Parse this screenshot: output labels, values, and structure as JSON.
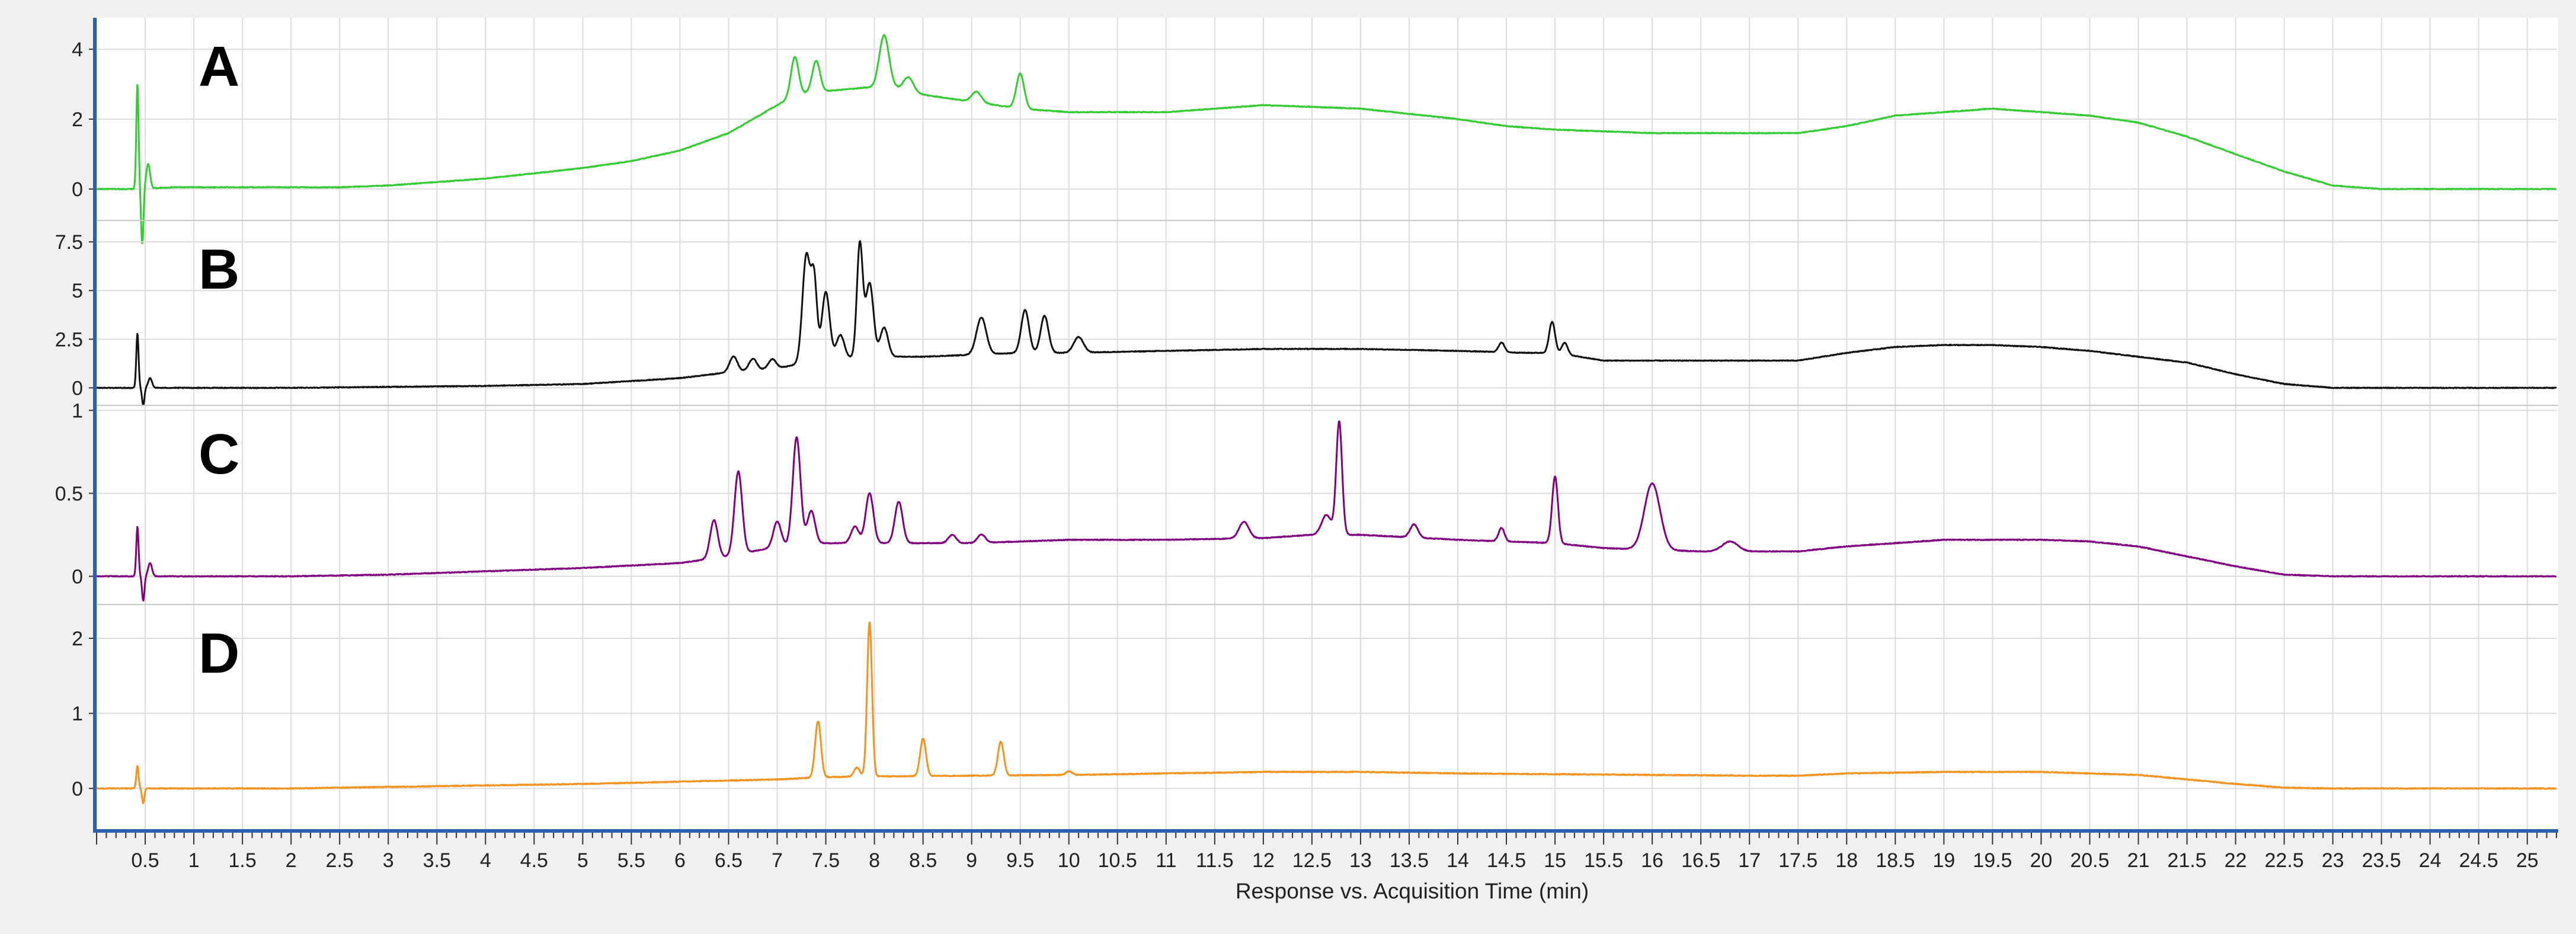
{
  "chart_data": {
    "type": "line",
    "xlabel": "Response vs. Acquisition Time (min)",
    "xlim": [
      0,
      25.3
    ],
    "xticks": [
      0.5,
      1,
      1.5,
      2,
      2.5,
      3,
      3.5,
      4,
      4.5,
      5,
      5.5,
      6,
      6.5,
      7,
      7.5,
      8,
      8.5,
      9,
      9.5,
      10,
      10.5,
      11,
      11.5,
      12,
      12.5,
      13,
      13.5,
      14,
      14.5,
      15,
      15.5,
      16,
      16.5,
      17,
      17.5,
      18,
      18.5,
      19,
      19.5,
      20,
      20.5,
      21,
      21.5,
      22,
      22.5,
      23,
      23.5,
      24,
      24.5,
      25
    ],
    "grid": true,
    "panels": [
      {
        "label": "A",
        "color": "#33cc33",
        "ylim": [
          -0.9,
          4.9
        ],
        "yticks": [
          0,
          2,
          4
        ],
        "ytick_labels": [
          "0",
          "2",
          "4"
        ],
        "baseline": [
          [
            0,
            0
          ],
          [
            0.4,
            0
          ],
          [
            0.8,
            0.05
          ],
          [
            2,
            0.05
          ],
          [
            2.5,
            0.05
          ],
          [
            3,
            0.1
          ],
          [
            4,
            0.3
          ],
          [
            5,
            0.6
          ],
          [
            5.5,
            0.8
          ],
          [
            6,
            1.1
          ],
          [
            6.5,
            1.6
          ],
          [
            7,
            2.4
          ],
          [
            7.2,
            2.7
          ],
          [
            7.5,
            2.8
          ],
          [
            7.9,
            2.9
          ],
          [
            8.2,
            2.9
          ],
          [
            8.5,
            2.7
          ],
          [
            9,
            2.5
          ],
          [
            9.5,
            2.3
          ],
          [
            10,
            2.2
          ],
          [
            11,
            2.2
          ],
          [
            11.5,
            2.3
          ],
          [
            12,
            2.4
          ],
          [
            13,
            2.3
          ],
          [
            14,
            2.0
          ],
          [
            14.5,
            1.8
          ],
          [
            15,
            1.7
          ],
          [
            16,
            1.6
          ],
          [
            17.5,
            1.6
          ],
          [
            18,
            1.8
          ],
          [
            18.5,
            2.1
          ],
          [
            19,
            2.2
          ],
          [
            19.5,
            2.3
          ],
          [
            20,
            2.2
          ],
          [
            20.5,
            2.1
          ],
          [
            21,
            1.9
          ],
          [
            21.5,
            1.5
          ],
          [
            22,
            1.0
          ],
          [
            22.5,
            0.5
          ],
          [
            23,
            0.1
          ],
          [
            23.5,
            0
          ],
          [
            25.3,
            0
          ]
        ],
        "peaks": [
          [
            0.42,
            3.0,
            0.012
          ],
          [
            0.47,
            -1.6,
            0.012
          ],
          [
            0.53,
            0.7,
            0.02
          ],
          [
            7.18,
            1.1,
            0.04
          ],
          [
            7.4,
            0.9,
            0.04
          ],
          [
            8.1,
            1.5,
            0.05
          ],
          [
            8.35,
            0.4,
            0.05
          ],
          [
            9.05,
            0.3,
            0.05
          ],
          [
            9.5,
            1.0,
            0.04
          ]
        ]
      },
      {
        "label": "B",
        "color": "#111111",
        "ylim": [
          -0.9,
          8.6
        ],
        "yticks": [
          0,
          2.5,
          5,
          7.5
        ],
        "ytick_labels": [
          "0",
          "2.5",
          "5",
          "7.5"
        ],
        "baseline": [
          [
            0,
            0
          ],
          [
            2,
            0
          ],
          [
            3,
            0.05
          ],
          [
            4,
            0.1
          ],
          [
            5,
            0.2
          ],
          [
            6,
            0.5
          ],
          [
            6.5,
            0.8
          ],
          [
            7,
            1.0
          ],
          [
            7.3,
            1.3
          ],
          [
            7.6,
            1.5
          ],
          [
            8,
            1.6
          ],
          [
            8.5,
            1.6
          ],
          [
            9,
            1.7
          ],
          [
            9.5,
            1.8
          ],
          [
            10,
            1.8
          ],
          [
            11,
            1.9
          ],
          [
            12,
            2.0
          ],
          [
            13,
            2.0
          ],
          [
            14,
            1.9
          ],
          [
            14.7,
            1.8
          ],
          [
            15,
            1.8
          ],
          [
            15.5,
            1.4
          ],
          [
            16,
            1.4
          ],
          [
            17.5,
            1.4
          ],
          [
            18,
            1.8
          ],
          [
            18.5,
            2.1
          ],
          [
            19,
            2.2
          ],
          [
            19.5,
            2.2
          ],
          [
            20,
            2.1
          ],
          [
            20.5,
            1.9
          ],
          [
            21,
            1.6
          ],
          [
            21.5,
            1.3
          ],
          [
            22,
            0.7
          ],
          [
            22.5,
            0.2
          ],
          [
            23,
            0
          ],
          [
            25.3,
            0
          ]
        ],
        "peaks": [
          [
            0.42,
            2.8,
            0.012
          ],
          [
            0.48,
            -0.9,
            0.012
          ],
          [
            0.55,
            0.5,
            0.02
          ],
          [
            6.55,
            0.8,
            0.04
          ],
          [
            6.75,
            0.6,
            0.04
          ],
          [
            6.95,
            0.5,
            0.04
          ],
          [
            7.3,
            5.5,
            0.04
          ],
          [
            7.38,
            4.0,
            0.03
          ],
          [
            7.5,
            3.5,
            0.04
          ],
          [
            7.65,
            1.2,
            0.04
          ],
          [
            7.85,
            5.8,
            0.03
          ],
          [
            7.95,
            3.8,
            0.04
          ],
          [
            8.1,
            1.5,
            0.04
          ],
          [
            9.1,
            1.9,
            0.05
          ],
          [
            9.55,
            2.2,
            0.04
          ],
          [
            9.75,
            1.9,
            0.04
          ],
          [
            10.1,
            0.8,
            0.05
          ],
          [
            14.45,
            0.5,
            0.03
          ],
          [
            14.97,
            1.6,
            0.03
          ],
          [
            15.1,
            0.6,
            0.03
          ]
        ]
      },
      {
        "label": "C",
        "color": "#800080",
        "ylim": [
          -0.17,
          1.03
        ],
        "yticks": [
          0,
          0.5,
          1
        ],
        "ytick_labels": [
          "0",
          "0.5",
          "1"
        ],
        "baseline": [
          [
            0,
            0
          ],
          [
            2,
            0
          ],
          [
            3,
            0.01
          ],
          [
            4,
            0.03
          ],
          [
            5,
            0.05
          ],
          [
            6,
            0.08
          ],
          [
            6.5,
            0.12
          ],
          [
            7,
            0.18
          ],
          [
            7.5,
            0.2
          ],
          [
            8,
            0.2
          ],
          [
            9,
            0.2
          ],
          [
            10,
            0.22
          ],
          [
            11,
            0.22
          ],
          [
            12,
            0.23
          ],
          [
            12.5,
            0.25
          ],
          [
            13,
            0.25
          ],
          [
            14,
            0.22
          ],
          [
            15,
            0.2
          ],
          [
            15.5,
            0.17
          ],
          [
            16.5,
            0.15
          ],
          [
            17.5,
            0.15
          ],
          [
            18,
            0.18
          ],
          [
            18.5,
            0.2
          ],
          [
            19,
            0.22
          ],
          [
            20,
            0.22
          ],
          [
            20.5,
            0.21
          ],
          [
            21,
            0.18
          ],
          [
            21.5,
            0.12
          ],
          [
            22,
            0.06
          ],
          [
            22.5,
            0.01
          ],
          [
            23,
            0
          ],
          [
            25.3,
            0
          ]
        ],
        "peaks": [
          [
            0.42,
            0.3,
            0.012
          ],
          [
            0.48,
            -0.15,
            0.012
          ],
          [
            0.55,
            0.08,
            0.02
          ],
          [
            6.35,
            0.23,
            0.04
          ],
          [
            6.6,
            0.5,
            0.04
          ],
          [
            7.0,
            0.15,
            0.04
          ],
          [
            7.2,
            0.65,
            0.04
          ],
          [
            7.35,
            0.2,
            0.04
          ],
          [
            7.8,
            0.1,
            0.04
          ],
          [
            7.95,
            0.3,
            0.04
          ],
          [
            8.25,
            0.25,
            0.04
          ],
          [
            8.8,
            0.05,
            0.04
          ],
          [
            9.1,
            0.05,
            0.04
          ],
          [
            11.8,
            0.1,
            0.05
          ],
          [
            12.65,
            0.12,
            0.05
          ],
          [
            12.78,
            0.68,
            0.03
          ],
          [
            13.55,
            0.08,
            0.04
          ],
          [
            14.45,
            0.08,
            0.03
          ],
          [
            15.0,
            0.4,
            0.03
          ],
          [
            16.0,
            0.4,
            0.08
          ],
          [
            16.8,
            0.06,
            0.08
          ]
        ]
      },
      {
        "label": "D",
        "color": "#f5921e",
        "ylim": [
          -0.55,
          2.45
        ],
        "yticks": [
          0,
          1,
          2
        ],
        "ytick_labels": [
          "0",
          "1",
          "2"
        ],
        "baseline": [
          [
            0,
            0
          ],
          [
            2,
            0
          ],
          [
            3,
            0.02
          ],
          [
            4,
            0.04
          ],
          [
            5,
            0.06
          ],
          [
            6,
            0.09
          ],
          [
            7,
            0.12
          ],
          [
            7.5,
            0.15
          ],
          [
            8,
            0.16
          ],
          [
            9,
            0.17
          ],
          [
            10,
            0.18
          ],
          [
            11,
            0.2
          ],
          [
            12,
            0.22
          ],
          [
            13,
            0.22
          ],
          [
            14,
            0.2
          ],
          [
            15,
            0.19
          ],
          [
            16,
            0.18
          ],
          [
            17,
            0.17
          ],
          [
            17.5,
            0.17
          ],
          [
            18,
            0.2
          ],
          [
            19,
            0.22
          ],
          [
            20,
            0.22
          ],
          [
            20.5,
            0.2
          ],
          [
            21,
            0.18
          ],
          [
            21.5,
            0.12
          ],
          [
            22,
            0.06
          ],
          [
            22.5,
            0.01
          ],
          [
            23,
            0
          ],
          [
            25.3,
            0
          ]
        ],
        "peaks": [
          [
            0.42,
            0.3,
            0.012
          ],
          [
            0.48,
            -0.2,
            0.012
          ],
          [
            7.42,
            0.75,
            0.03
          ],
          [
            7.82,
            0.12,
            0.03
          ],
          [
            7.95,
            2.05,
            0.025
          ],
          [
            8.5,
            0.5,
            0.03
          ],
          [
            9.3,
            0.45,
            0.03
          ],
          [
            10.0,
            0.05,
            0.03
          ]
        ]
      }
    ]
  }
}
